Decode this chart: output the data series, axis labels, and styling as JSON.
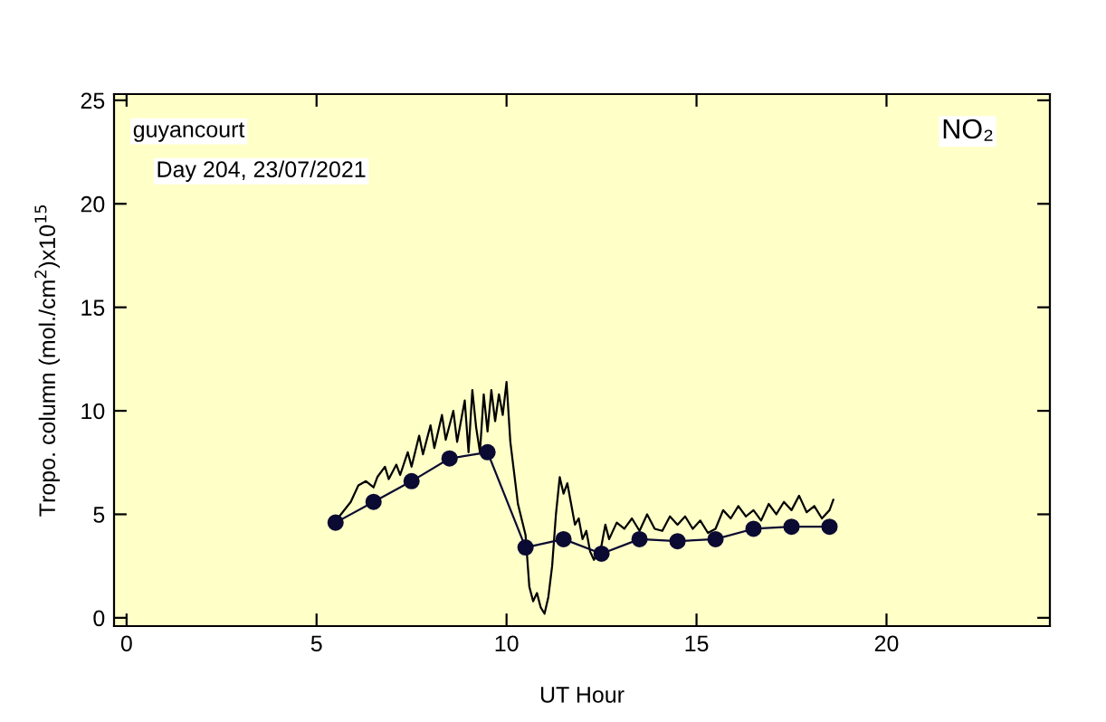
{
  "chart_data": {
    "type": "line",
    "xlabel": "UT Hour",
    "ylabel": "Tropo. column (mol./cm$^{2}$)x10$^{15}$",
    "annotations": [
      "guyancourt",
      "Day 204, 23/07/2021",
      "NO₂"
    ],
    "xlim": [
      -0.33,
      24.3
    ],
    "ylim": [
      -0.4,
      25.3
    ],
    "xticks": [
      0,
      5,
      10,
      15,
      20
    ],
    "yticks": [
      0,
      5,
      10,
      15,
      20,
      25
    ],
    "grid": false,
    "legend": false,
    "series": [
      {
        "color": "#000000",
        "marker": "none",
        "x": [
          5.6,
          5.9,
          6.1,
          6.3,
          6.5,
          6.6,
          6.8,
          6.9,
          7.1,
          7.2,
          7.4,
          7.5,
          7.7,
          7.8,
          8.0,
          8.1,
          8.3,
          8.4,
          8.6,
          8.7,
          8.9,
          9.0,
          9.1,
          9.2,
          9.3,
          9.4,
          9.5,
          9.6,
          9.7,
          9.8,
          9.9,
          10.0,
          10.1,
          10.3,
          10.5,
          10.6,
          10.7,
          10.8,
          10.9,
          11.0,
          11.1,
          11.2,
          11.3,
          11.4,
          11.5,
          11.6,
          11.7,
          11.8,
          11.9,
          12.0,
          12.1,
          12.2,
          12.3,
          12.5,
          12.6,
          12.7,
          12.9,
          13.1,
          13.3,
          13.5,
          13.7,
          13.9,
          14.1,
          14.3,
          14.5,
          14.7,
          14.9,
          15.1,
          15.3,
          15.5,
          15.7,
          15.9,
          16.1,
          16.3,
          16.5,
          16.7,
          16.9,
          17.1,
          17.3,
          17.5,
          17.7,
          17.9,
          18.1,
          18.3,
          18.5,
          18.6
        ],
        "values": [
          4.9,
          5.6,
          6.4,
          6.6,
          6.3,
          6.8,
          7.3,
          6.7,
          7.4,
          6.9,
          8.0,
          7.3,
          8.8,
          7.9,
          9.3,
          8.2,
          9.8,
          8.6,
          10.0,
          8.5,
          10.5,
          8.0,
          11.0,
          9.2,
          8.0,
          10.8,
          9.0,
          11.0,
          9.5,
          10.8,
          9.8,
          11.4,
          8.5,
          5.5,
          4.0,
          1.5,
          0.8,
          1.2,
          0.5,
          0.2,
          1.0,
          2.5,
          5.0,
          6.8,
          6.0,
          6.5,
          5.5,
          4.5,
          4.8,
          3.8,
          4.2,
          3.2,
          2.8,
          3.5,
          4.5,
          3.8,
          4.6,
          4.3,
          4.8,
          4.2,
          5.0,
          4.3,
          4.2,
          4.9,
          4.5,
          4.9,
          4.3,
          4.7,
          4.1,
          4.3,
          5.2,
          4.8,
          5.4,
          4.9,
          5.2,
          4.7,
          5.5,
          5.0,
          5.6,
          5.2,
          5.9,
          5.1,
          5.4,
          4.8,
          5.2,
          5.7
        ]
      },
      {
        "color": "#0a0a32",
        "marker": "circle",
        "x": [
          5.5,
          6.5,
          7.5,
          8.5,
          9.5,
          10.5,
          11.5,
          12.5,
          13.5,
          14.5,
          15.5,
          16.5,
          17.5,
          18.5
        ],
        "values": [
          4.6,
          5.6,
          6.6,
          7.7,
          8.0,
          3.4,
          3.8,
          3.1,
          3.8,
          3.7,
          3.8,
          4.3,
          4.4,
          4.4
        ]
      }
    ]
  }
}
